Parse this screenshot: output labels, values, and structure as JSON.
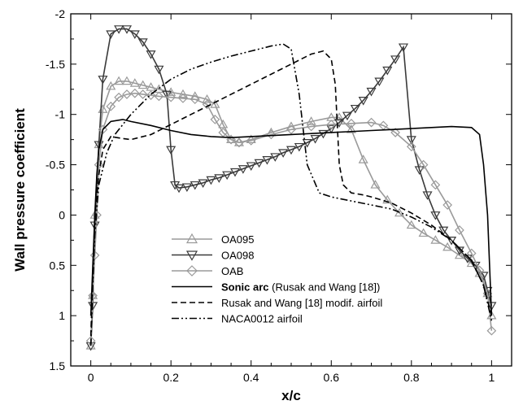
{
  "chart_data": {
    "type": "line",
    "xlabel": "x/c",
    "ylabel": "Wall pressure coefficient",
    "xlim": [
      -0.05,
      1.05
    ],
    "ylim": [
      1.5,
      -2
    ],
    "y_inverted": true,
    "x_ticks": [
      "0",
      "0.2",
      "0.4",
      "0.6",
      "0.8",
      "1"
    ],
    "x_tick_values": [
      0,
      0.2,
      0.4,
      0.6,
      0.8,
      1
    ],
    "y_ticks": [
      "-2",
      "-1.5",
      "-1",
      "-0.5",
      "0",
      "0.5",
      "1",
      "1.5"
    ],
    "y_tick_values": [
      -2,
      -1.5,
      -1,
      -0.5,
      0,
      0.5,
      1,
      1.5
    ],
    "legend_position": "lower-center",
    "series": [
      {
        "name": "OA095",
        "color": "#9a9a9a",
        "dash": "solid",
        "marker": "triangle-up",
        "x": [
          0.0,
          0.005,
          0.01,
          0.02,
          0.03,
          0.05,
          0.07,
          0.09,
          0.11,
          0.13,
          0.15,
          0.17,
          0.2,
          0.23,
          0.26,
          0.29,
          0.31,
          0.33,
          0.35,
          0.37,
          0.4,
          0.45,
          0.5,
          0.55,
          0.6,
          0.62,
          0.65,
          0.68,
          0.71,
          0.74,
          0.77,
          0.8,
          0.83,
          0.86,
          0.89,
          0.92,
          0.95,
          0.97,
          0.99,
          1.0
        ],
        "y": [
          1.3,
          0.8,
          0.0,
          -0.7,
          -1.05,
          -1.28,
          -1.33,
          -1.33,
          -1.31,
          -1.29,
          -1.27,
          -1.25,
          -1.22,
          -1.2,
          -1.18,
          -1.15,
          -1.1,
          -0.9,
          -0.75,
          -0.72,
          -0.75,
          -0.82,
          -0.88,
          -0.93,
          -0.97,
          -0.97,
          -0.85,
          -0.55,
          -0.3,
          -0.15,
          -0.02,
          0.1,
          0.18,
          0.25,
          0.32,
          0.4,
          0.48,
          0.58,
          0.78,
          1.0
        ]
      },
      {
        "name": "OA098",
        "color": "#3a3a3a",
        "dash": "solid",
        "marker": "triangle-down",
        "x": [
          0.0,
          0.005,
          0.01,
          0.02,
          0.03,
          0.05,
          0.07,
          0.09,
          0.11,
          0.13,
          0.15,
          0.17,
          0.19,
          0.2,
          0.21,
          0.22,
          0.24,
          0.26,
          0.28,
          0.3,
          0.32,
          0.34,
          0.36,
          0.38,
          0.4,
          0.42,
          0.44,
          0.46,
          0.48,
          0.5,
          0.52,
          0.54,
          0.56,
          0.58,
          0.6,
          0.62,
          0.64,
          0.66,
          0.68,
          0.7,
          0.72,
          0.74,
          0.76,
          0.78,
          0.8,
          0.82,
          0.84,
          0.86,
          0.88,
          0.9,
          0.92,
          0.94,
          0.96,
          0.98,
          0.99,
          1.0
        ],
        "y": [
          1.3,
          0.9,
          0.1,
          -0.7,
          -1.35,
          -1.8,
          -1.85,
          -1.85,
          -1.8,
          -1.72,
          -1.6,
          -1.45,
          -1.2,
          -0.65,
          -0.3,
          -0.27,
          -0.28,
          -0.3,
          -0.32,
          -0.35,
          -0.37,
          -0.4,
          -0.43,
          -0.46,
          -0.49,
          -0.52,
          -0.55,
          -0.58,
          -0.62,
          -0.65,
          -0.68,
          -0.72,
          -0.76,
          -0.81,
          -0.86,
          -0.92,
          -0.99,
          -1.06,
          -1.14,
          -1.23,
          -1.33,
          -1.44,
          -1.55,
          -1.67,
          -0.75,
          -0.45,
          -0.2,
          0.0,
          0.15,
          0.25,
          0.35,
          0.43,
          0.5,
          0.6,
          0.75,
          0.9
        ]
      },
      {
        "name": "OAB",
        "color": "#9a9a9a",
        "dash": "solid",
        "marker": "diamond",
        "x": [
          0.0,
          0.005,
          0.01,
          0.015,
          0.02,
          0.03,
          0.05,
          0.07,
          0.09,
          0.11,
          0.13,
          0.15,
          0.17,
          0.2,
          0.23,
          0.26,
          0.29,
          0.31,
          0.33,
          0.35,
          0.37,
          0.4,
          0.45,
          0.5,
          0.55,
          0.6,
          0.65,
          0.7,
          0.73,
          0.76,
          0.8,
          0.83,
          0.86,
          0.89,
          0.92,
          0.95,
          0.97,
          0.99,
          1.0
        ],
        "y": [
          1.25,
          0.8,
          0.4,
          0.0,
          -0.5,
          -0.85,
          -1.08,
          -1.17,
          -1.2,
          -1.21,
          -1.2,
          -1.19,
          -1.18,
          -1.17,
          -1.16,
          -1.15,
          -1.1,
          -0.95,
          -0.82,
          -0.75,
          -0.72,
          -0.74,
          -0.8,
          -0.85,
          -0.88,
          -0.9,
          -0.91,
          -0.92,
          -0.89,
          -0.82,
          -0.68,
          -0.5,
          -0.3,
          -0.1,
          0.15,
          0.38,
          0.55,
          0.78,
          1.15
        ]
      },
      {
        "name": "Sonic arc",
        "name_suffix": " (Rusak and Wang [18])",
        "color": "#000000",
        "dash": "solid",
        "marker": "none",
        "x": [
          0.0,
          0.005,
          0.01,
          0.015,
          0.02,
          0.03,
          0.05,
          0.08,
          0.1,
          0.15,
          0.2,
          0.25,
          0.3,
          0.35,
          0.4,
          0.45,
          0.5,
          0.55,
          0.6,
          0.65,
          0.7,
          0.75,
          0.8,
          0.85,
          0.9,
          0.95,
          0.97,
          0.98,
          0.99,
          0.995,
          1.0
        ],
        "y": [
          1.0,
          0.5,
          0.0,
          -0.4,
          -0.65,
          -0.85,
          -0.93,
          -0.95,
          -0.93,
          -0.89,
          -0.84,
          -0.8,
          -0.78,
          -0.77,
          -0.78,
          -0.79,
          -0.8,
          -0.81,
          -0.82,
          -0.83,
          -0.84,
          -0.85,
          -0.86,
          -0.87,
          -0.88,
          -0.87,
          -0.8,
          -0.5,
          0.0,
          0.5,
          1.0
        ]
      },
      {
        "name": "Rusak and Wang [18] modif. airfoil",
        "color": "#000000",
        "dash": "dash",
        "marker": "none",
        "x": [
          0.0,
          0.005,
          0.01,
          0.02,
          0.03,
          0.05,
          0.08,
          0.1,
          0.15,
          0.2,
          0.25,
          0.3,
          0.35,
          0.4,
          0.45,
          0.5,
          0.55,
          0.58,
          0.6,
          0.61,
          0.62,
          0.63,
          0.65,
          0.68,
          0.7,
          0.75,
          0.8,
          0.85,
          0.9,
          0.95,
          0.98,
          1.0
        ],
        "y": [
          1.2,
          0.6,
          0.0,
          -0.4,
          -0.65,
          -0.78,
          -0.76,
          -0.75,
          -0.8,
          -0.9,
          -1.0,
          -1.1,
          -1.2,
          -1.3,
          -1.4,
          -1.5,
          -1.6,
          -1.63,
          -1.55,
          -1.3,
          -0.5,
          -0.3,
          -0.22,
          -0.2,
          -0.18,
          -0.12,
          -0.02,
          0.1,
          0.25,
          0.45,
          0.7,
          1.0
        ]
      },
      {
        "name": "NACA0012 airfoil",
        "color": "#000000",
        "dash": "dashdotdot",
        "marker": "none",
        "x": [
          0.0,
          0.005,
          0.01,
          0.02,
          0.04,
          0.06,
          0.1,
          0.15,
          0.2,
          0.25,
          0.3,
          0.35,
          0.4,
          0.45,
          0.48,
          0.5,
          0.52,
          0.54,
          0.57,
          0.6,
          0.65,
          0.7,
          0.75,
          0.8,
          0.85,
          0.9,
          0.95,
          0.98,
          1.0
        ],
        "y": [
          1.3,
          0.7,
          0.2,
          -0.3,
          -0.62,
          -0.8,
          -1.0,
          -1.2,
          -1.35,
          -1.45,
          -1.52,
          -1.58,
          -1.63,
          -1.68,
          -1.7,
          -1.65,
          -1.2,
          -0.5,
          -0.22,
          -0.18,
          -0.14,
          -0.1,
          -0.06,
          0.02,
          0.12,
          0.25,
          0.45,
          0.7,
          1.05
        ]
      }
    ]
  }
}
